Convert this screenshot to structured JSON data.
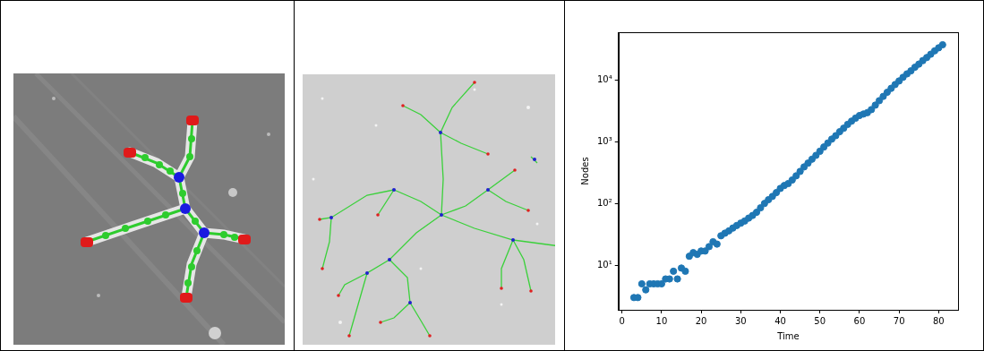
{
  "chart_data": {
    "type": "scatter",
    "xlabel": "Time",
    "ylabel": "Nodes",
    "x": [
      3,
      4,
      5,
      6,
      7,
      8,
      9,
      10,
      11,
      12,
      13,
      14,
      15,
      16,
      17,
      18,
      19,
      20,
      21,
      22,
      23,
      24,
      25,
      26,
      27,
      28,
      29,
      30,
      31,
      32,
      33,
      34,
      35,
      36,
      37,
      38,
      39,
      40,
      41,
      42,
      43,
      44,
      45,
      46,
      47,
      48,
      49,
      50,
      51,
      52,
      53,
      54,
      55,
      56,
      57,
      58,
      59,
      60,
      61,
      62,
      63,
      64,
      65,
      66,
      67,
      68,
      69,
      70,
      71,
      72,
      73,
      74,
      75,
      76,
      77,
      78,
      79,
      80,
      81
    ],
    "values": [
      3,
      3,
      5,
      4,
      5,
      5,
      5,
      5,
      6,
      6,
      8,
      6,
      9,
      8,
      14,
      16,
      15,
      17,
      17,
      20,
      24,
      22,
      30,
      33,
      36,
      40,
      44,
      48,
      52,
      58,
      64,
      72,
      85,
      100,
      115,
      130,
      150,
      175,
      195,
      210,
      240,
      280,
      330,
      390,
      450,
      520,
      600,
      700,
      820,
      950,
      1100,
      1250,
      1450,
      1650,
      1900,
      2150,
      2400,
      2650,
      2800,
      2950,
      3300,
      3900,
      4600,
      5400,
      6300,
      7300,
      8400,
      9600,
      11000,
      12500,
      14000,
      16000,
      18000,
      20500,
      23000,
      26000,
      29500,
      33000,
      37000
    ],
    "color": "#1f77b4",
    "marker": "circle",
    "xlim": [
      -0.9,
      84.9
    ],
    "xticks": [
      0,
      10,
      20,
      30,
      40,
      50,
      60,
      70,
      80
    ],
    "ylim": [
      1.9,
      59000
    ],
    "yticks": [
      {
        "value": 10,
        "label": "10¹"
      },
      {
        "value": 100,
        "label": "10²"
      },
      {
        "value": 1000,
        "label": "10³"
      },
      {
        "value": 10000,
        "label": "10⁴"
      }
    ],
    "log": "y",
    "grid": false
  }
}
